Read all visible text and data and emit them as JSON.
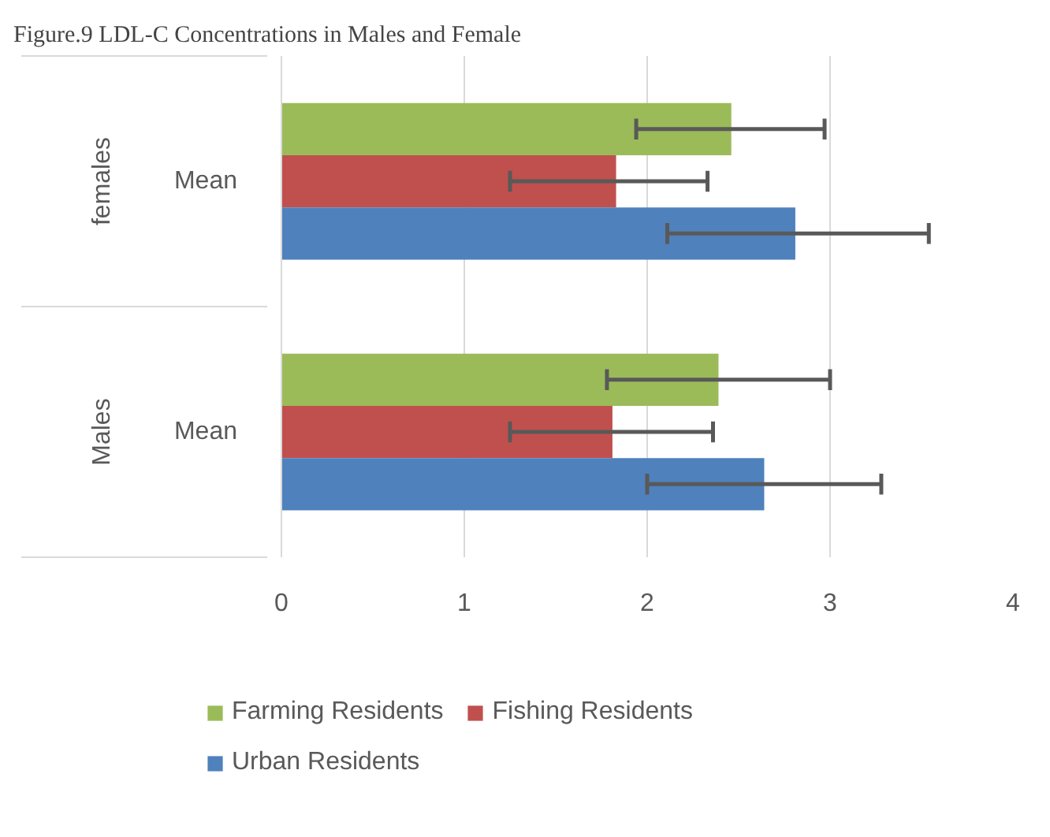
{
  "chart_data": {
    "type": "bar",
    "orientation": "horizontal",
    "title": "Figure.9 LDL-C Concentrations in Males and Female",
    "categories": [
      "Mean",
      "Mean"
    ],
    "annotations": [
      "females",
      "Males"
    ],
    "series": [
      {
        "name": "Farming Residents",
        "color": "#9bbb59",
        "values": [
          2.46,
          2.39
        ],
        "errors": [
          [
            1.94,
            2.97
          ],
          [
            1.78,
            3.0
          ]
        ]
      },
      {
        "name": "Fishing Residents",
        "color": "#c0504d",
        "values": [
          1.83,
          1.81
        ],
        "errors": [
          [
            1.25,
            2.33
          ],
          [
            1.25,
            2.36
          ]
        ]
      },
      {
        "name": "Urban Residents",
        "color": "#4f81bd",
        "values": [
          2.81,
          2.64
        ],
        "errors": [
          [
            2.11,
            3.54
          ],
          [
            2.0,
            3.28
          ]
        ]
      }
    ],
    "xlim": [
      0,
      4
    ],
    "xticks": [
      0,
      1,
      2,
      3,
      4
    ],
    "grid": "x",
    "legend": "bottom"
  }
}
